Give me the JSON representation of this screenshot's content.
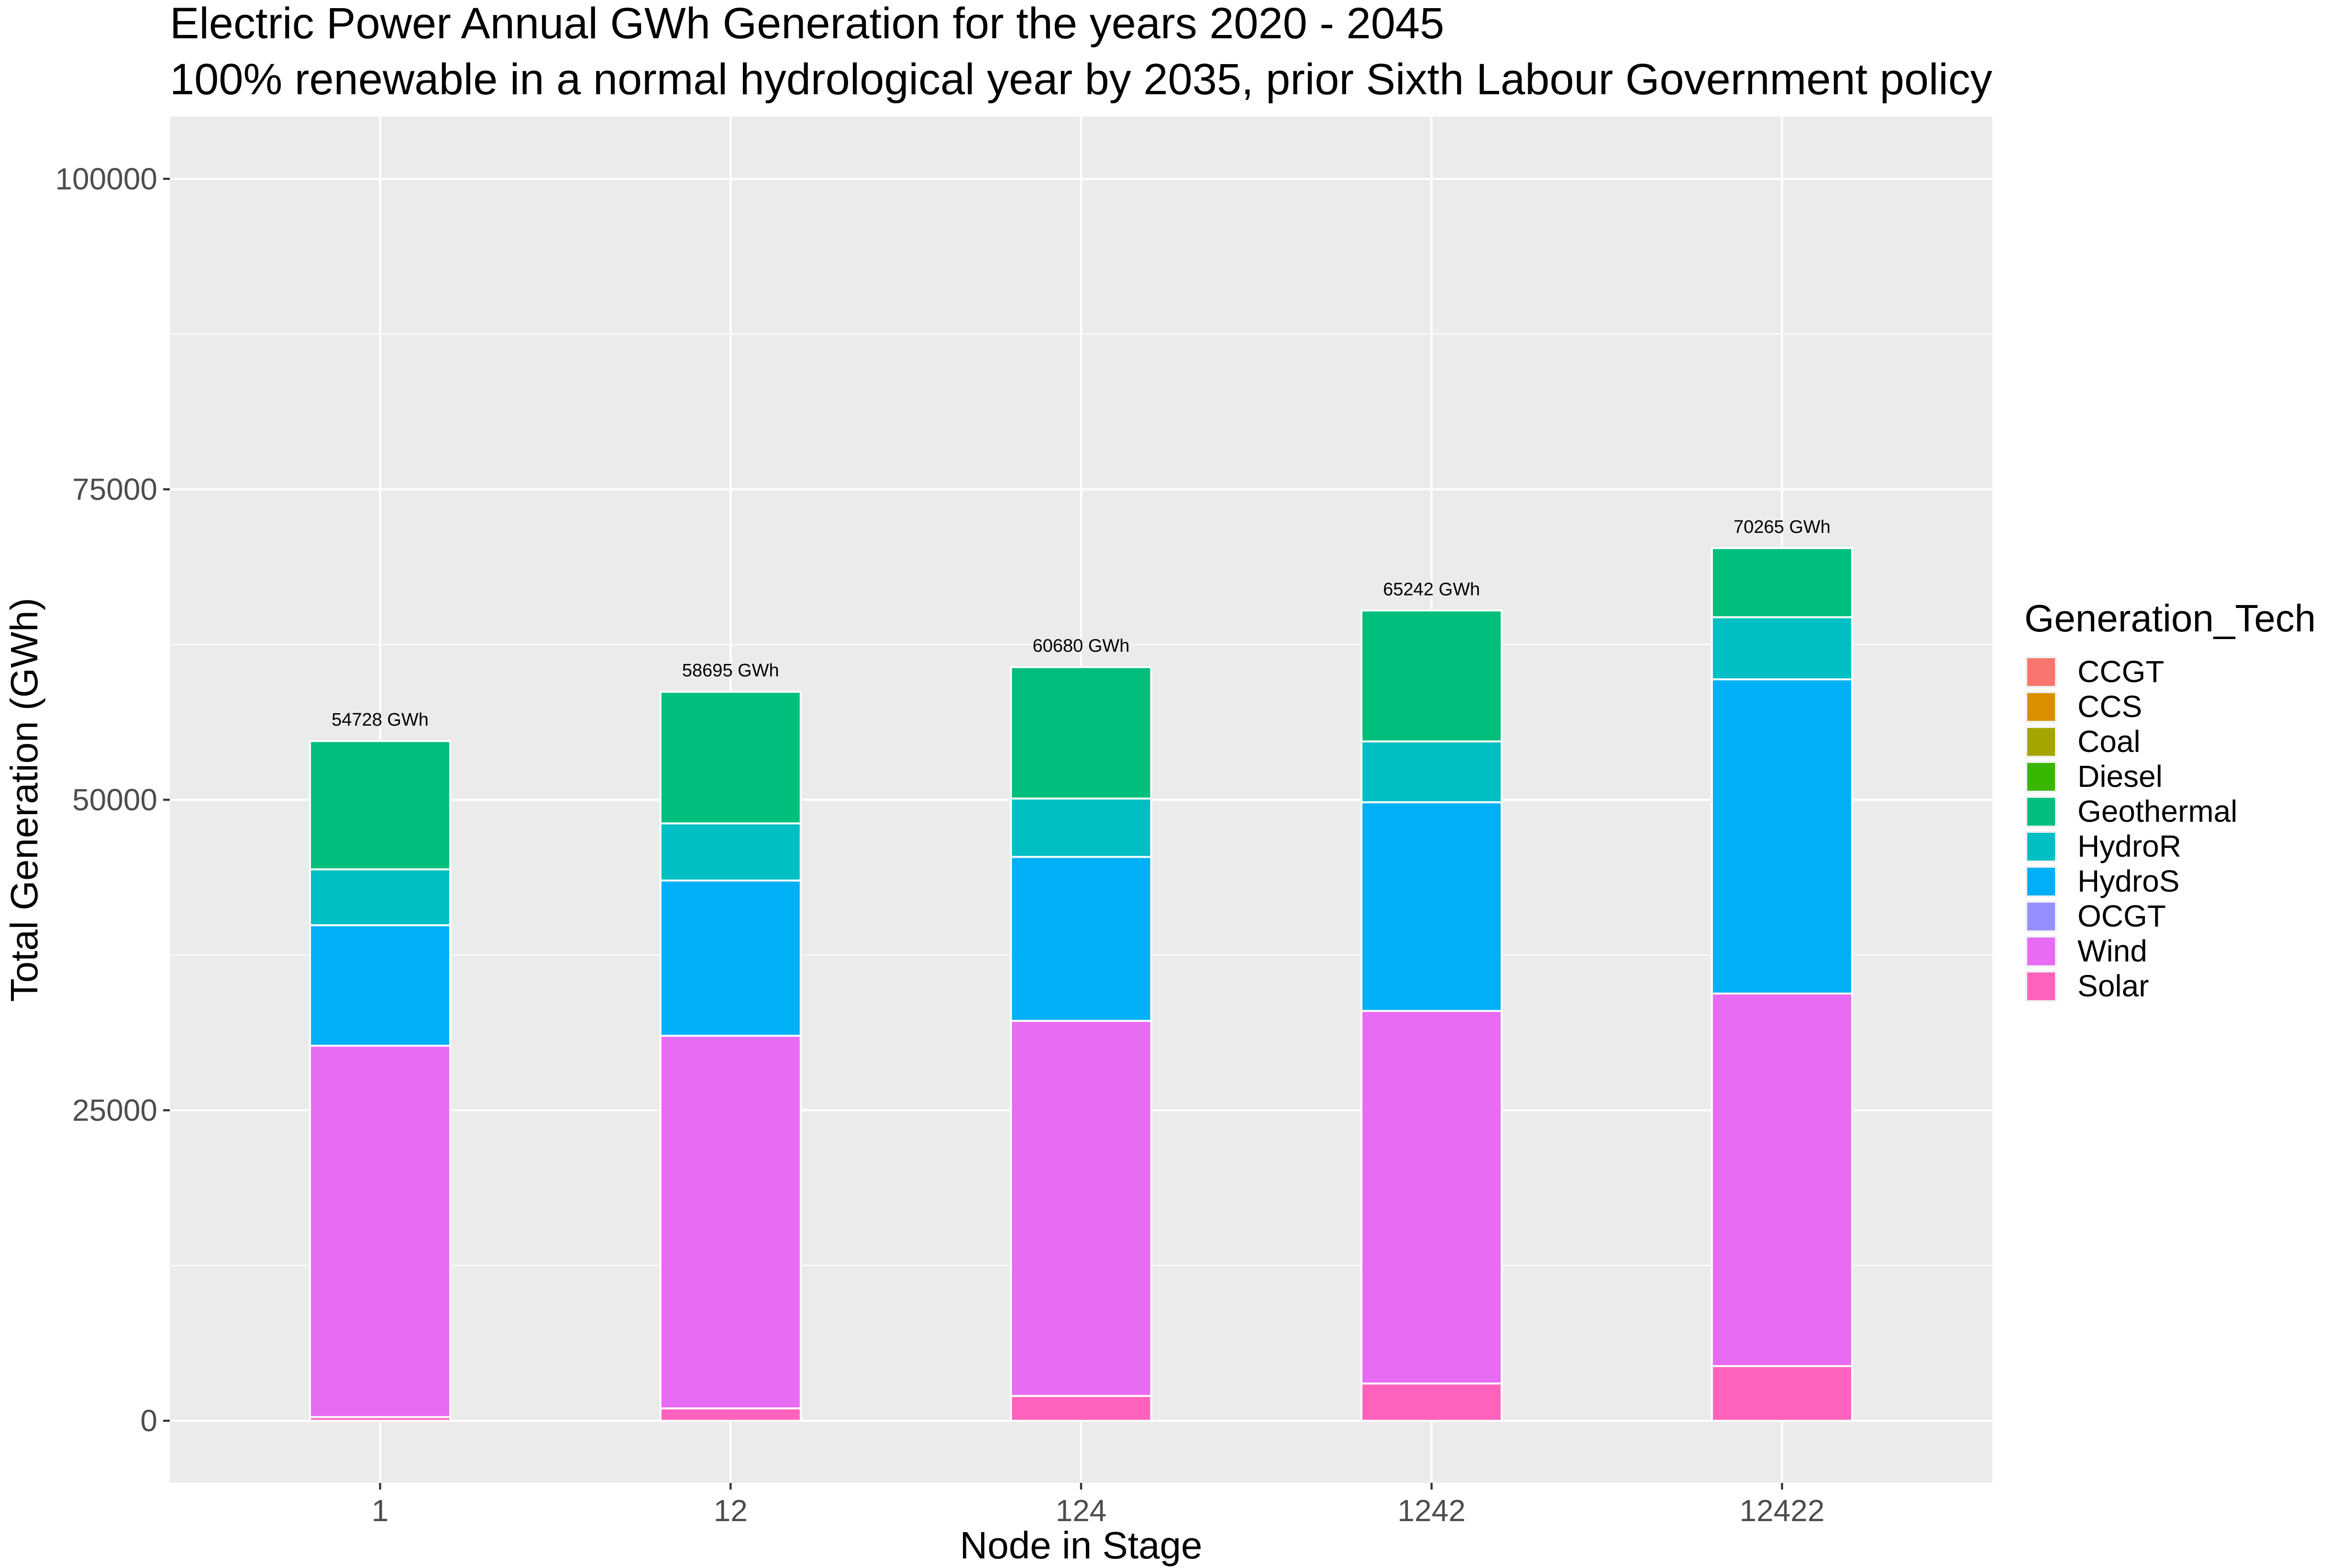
{
  "chart_data": {
    "type": "bar",
    "stacked": true,
    "title": "Electric Power Annual GWh Generation for the years 2020 - 2045",
    "subtitle": "100% renewable in a normal hydrological year by 2035, prior Sixth Labour Government policy",
    "xlabel": "Node in Stage",
    "ylabel": "Total Generation (GWh)",
    "categories": [
      "1",
      "12",
      "124",
      "1242",
      "12422"
    ],
    "ylim": [
      -5000,
      105000
    ],
    "yticks": [
      0,
      25000,
      50000,
      75000,
      100000
    ],
    "ytick_labels": [
      "0",
      "25000",
      "50000",
      "75000",
      "100000"
    ],
    "grid": true,
    "legend": {
      "title": "Generation_Tech",
      "position": "right"
    },
    "series": [
      {
        "name": "CCGT",
        "color": "#F8766D",
        "values": [
          0,
          0,
          0,
          0,
          0
        ]
      },
      {
        "name": "CCS",
        "color": "#D89000",
        "values": [
          0,
          0,
          0,
          0,
          0
        ]
      },
      {
        "name": "Coal",
        "color": "#A3A500",
        "values": [
          0,
          0,
          0,
          0,
          0
        ]
      },
      {
        "name": "Diesel",
        "color": "#39B600",
        "values": [
          0,
          0,
          0,
          0,
          0
        ]
      },
      {
        "name": "Geothermal",
        "color": "#00BF7D",
        "values": [
          10328,
          10595,
          10580,
          10542,
          5565
        ]
      },
      {
        "name": "HydroR",
        "color": "#00BFC4",
        "values": [
          4500,
          4600,
          4700,
          4900,
          5000
        ]
      },
      {
        "name": "HydroS",
        "color": "#00B0F6",
        "values": [
          9700,
          12500,
          13200,
          16800,
          25300
        ]
      },
      {
        "name": "OCGT",
        "color": "#9590FF",
        "values": [
          0,
          0,
          0,
          0,
          0
        ]
      },
      {
        "name": "Wind",
        "color": "#E76BF3",
        "values": [
          29900,
          30000,
          30200,
          30000,
          30000
        ]
      },
      {
        "name": "Solar",
        "color": "#FF62BC",
        "values": [
          300,
          1000,
          2000,
          3000,
          4400
        ]
      }
    ],
    "draw_order": [
      "Solar",
      "Wind",
      "OCGT",
      "HydroS",
      "HydroR",
      "Geothermal",
      "Diesel",
      "Coal",
      "CCS",
      "CCGT"
    ],
    "totals": [
      54728,
      58695,
      60680,
      65242,
      70265
    ],
    "total_labels": [
      "54728 GWh",
      "58695 GWh",
      "60680 GWh",
      "65242 GWh",
      "70265 GWh"
    ]
  },
  "colors": {
    "panel_background": "#EBEBEB",
    "gridline": "#FFFFFF",
    "bar_outline": "#FFFFFF"
  }
}
